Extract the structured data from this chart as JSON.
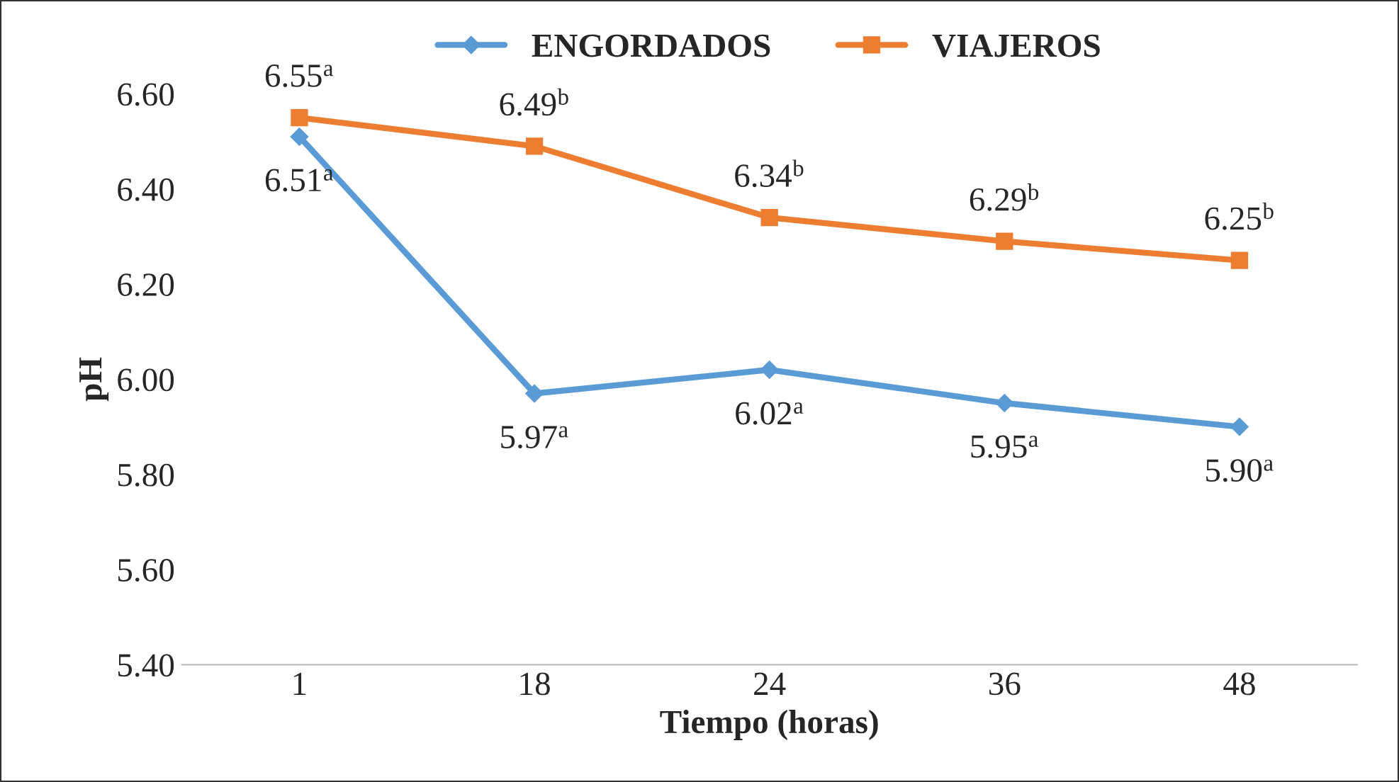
{
  "chart_data": {
    "type": "line",
    "xlabel": "Tiempo (horas)",
    "ylabel": "pH",
    "categories": [
      "1",
      "18",
      "24",
      "36",
      "48"
    ],
    "ylim": [
      5.4,
      6.6
    ],
    "yticks": [
      {
        "value": 5.4,
        "label": "5.40"
      },
      {
        "value": 5.6,
        "label": "5.60"
      },
      {
        "value": 5.8,
        "label": "5.80"
      },
      {
        "value": 6.0,
        "label": "6.00"
      },
      {
        "value": 6.2,
        "label": "6.20"
      },
      {
        "value": 6.4,
        "label": "6.40"
      },
      {
        "value": 6.6,
        "label": "6.60"
      }
    ],
    "grid": false,
    "legend": "top",
    "series": [
      {
        "name": "ENGORDADOS",
        "color": "#5b9bd5",
        "marker": "diamond",
        "values": [
          6.51,
          5.97,
          6.02,
          5.95,
          5.9
        ],
        "value_labels": [
          "6.51$^{a}$",
          "5.97$^{a}$",
          "6.02$^{a}$",
          "5.95$^{a}$",
          "5.90$^{a}$"
        ]
      },
      {
        "name": "VIAJEROS",
        "color": "#ed7d31",
        "marker": "square",
        "values": [
          6.55,
          6.49,
          6.34,
          6.29,
          6.25
        ],
        "value_labels": [
          "6.55$^{a}$",
          "6.49$^{b}$",
          "6.34$^{b}$",
          "6.29$^{b}$",
          "6.25$^{b}$"
        ]
      }
    ]
  }
}
